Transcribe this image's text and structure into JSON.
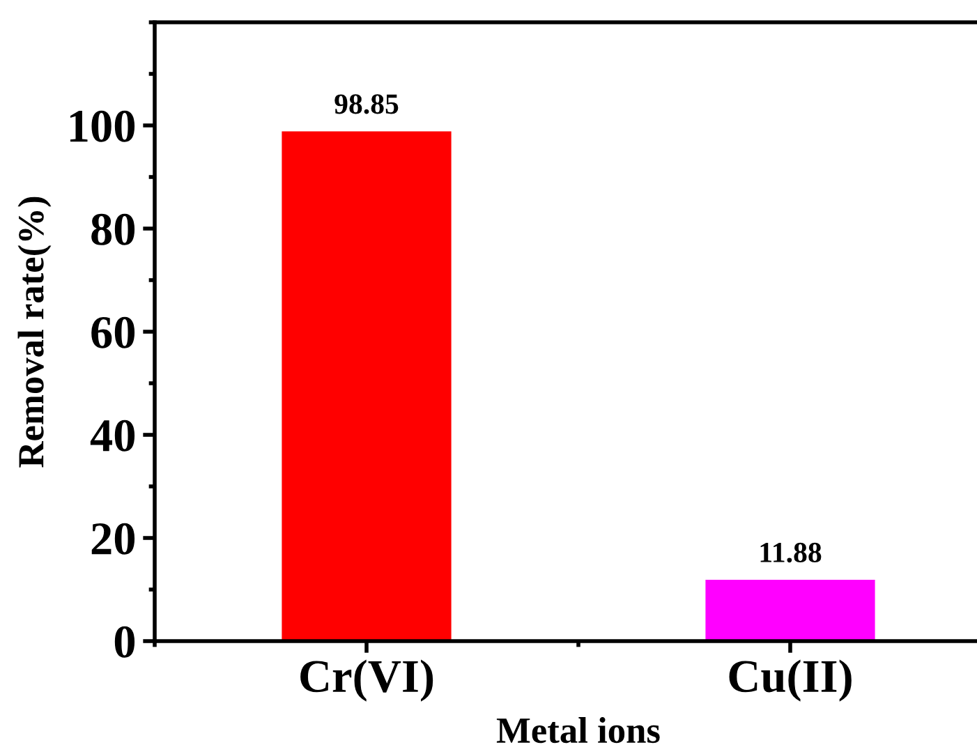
{
  "chart_data": {
    "type": "bar",
    "xlabel": "Metal ions",
    "ylabel": "Removal rate(%)",
    "categories": [
      "Cr(VI)",
      "Cu(II)"
    ],
    "values": [
      98.85,
      11.88
    ],
    "colors": [
      "#ff0000",
      "#ff00ff"
    ],
    "data_labels": true,
    "ylim": [
      0,
      120
    ],
    "yticks": [
      0,
      20,
      40,
      60,
      80,
      100
    ],
    "grid": false,
    "legend": false
  }
}
